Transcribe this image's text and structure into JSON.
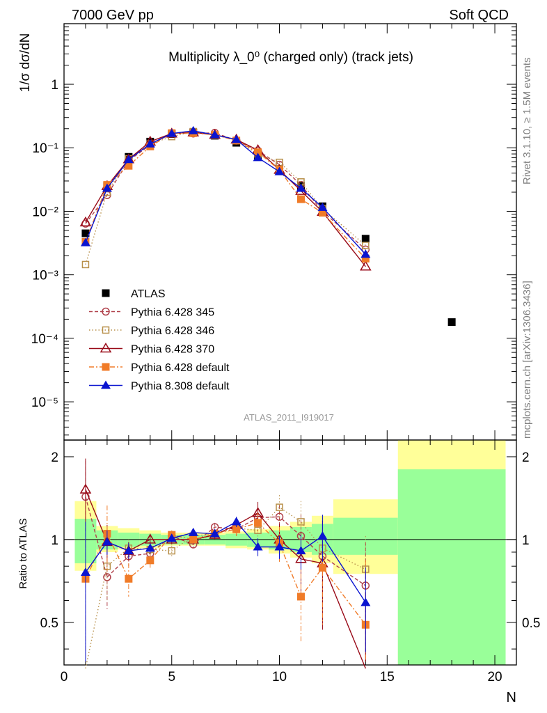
{
  "header": {
    "left": "7000 GeV pp",
    "right": "Soft QCD"
  },
  "side_labels": {
    "rivet": "Rivet 3.1.10, ≥ 1.5M events",
    "mcplots": "mcplots.cern.ch [arXiv:1306.3436]"
  },
  "colors": {
    "atlas": "#000000",
    "p345": "#b0404a",
    "p346": "#b8904a",
    "p370": "#990a18",
    "p6def": "#f07b28",
    "p8def": "#0a14d0",
    "band_inner": "#99ff99",
    "band_outer": "#ffff99"
  },
  "chart_data": {
    "type": "line",
    "title": "Multiplicity λ_0⁰ (charged only) (track jets)",
    "analysis_id": "ATLAS_2011_I919017",
    "xlabel": "N",
    "ylabel": "1/σ dσ/dN",
    "ratio_ylabel": "Ratio to ATLAS",
    "xlim": [
      0,
      21
    ],
    "ylim": [
      2.5e-06,
      9
    ],
    "yscale": "log",
    "ratio_ylim": [
      0.35,
      2.3
    ],
    "x_ticks": [
      "0",
      "5",
      "10",
      "15",
      "20"
    ],
    "y_ticks": [
      "10⁻⁵",
      "10⁻⁴",
      "10⁻³",
      "10⁻²",
      "10⁻¹",
      "1"
    ],
    "ratio_ticks": [
      "0.5",
      "1",
      "2"
    ],
    "legend_position": "center-left",
    "ref_band": [
      {
        "x0": 0.5,
        "x1": 1.5,
        "inner": [
          0.82,
          1.19
        ],
        "outer": [
          0.77,
          1.38
        ]
      },
      {
        "x0": 1.5,
        "x1": 2.5,
        "inner": [
          0.92,
          1.08
        ],
        "outer": [
          0.9,
          1.12
        ]
      },
      {
        "x0": 2.5,
        "x1": 3.5,
        "inner": [
          0.94,
          1.06
        ],
        "outer": [
          0.92,
          1.1
        ]
      },
      {
        "x0": 3.5,
        "x1": 4.5,
        "inner": [
          0.95,
          1.05
        ],
        "outer": [
          0.93,
          1.08
        ]
      },
      {
        "x0": 4.5,
        "x1": 5.5,
        "inner": [
          0.96,
          1.04
        ],
        "outer": [
          0.95,
          1.06
        ]
      },
      {
        "x0": 5.5,
        "x1": 6.5,
        "inner": [
          0.96,
          1.04
        ],
        "outer": [
          0.95,
          1.06
        ]
      },
      {
        "x0": 6.5,
        "x1": 7.5,
        "inner": [
          0.96,
          1.04
        ],
        "outer": [
          0.95,
          1.06
        ]
      },
      {
        "x0": 7.5,
        "x1": 8.5,
        "inner": [
          0.95,
          1.05
        ],
        "outer": [
          0.93,
          1.07
        ]
      },
      {
        "x0": 8.5,
        "x1": 9.5,
        "inner": [
          0.94,
          1.06
        ],
        "outer": [
          0.92,
          1.09
        ]
      },
      {
        "x0": 9.5,
        "x1": 10.5,
        "inner": [
          0.92,
          1.08
        ],
        "outer": [
          0.89,
          1.12
        ]
      },
      {
        "x0": 10.5,
        "x1": 11.5,
        "inner": [
          0.9,
          1.11
        ],
        "outer": [
          0.86,
          1.16
        ]
      },
      {
        "x0": 11.5,
        "x1": 12.5,
        "inner": [
          0.88,
          1.14
        ],
        "outer": [
          0.82,
          1.22
        ]
      },
      {
        "x0": 12.5,
        "x1": 15.5,
        "inner": [
          0.88,
          1.2
        ],
        "outer": [
          0.75,
          1.4
        ]
      },
      {
        "x0": 15.5,
        "x1": 20.5,
        "inner": [
          0.35,
          1.8
        ],
        "outer": [
          0.35,
          2.3
        ]
      }
    ],
    "series": [
      {
        "name": "ATLAS",
        "key": "atlas",
        "marker": "square",
        "dash": "",
        "x": [
          1,
          2,
          3,
          4,
          5,
          6,
          7,
          8,
          9,
          10,
          11,
          12,
          14,
          18
        ],
        "y": [
          0.0045,
          0.025,
          0.072,
          0.125,
          0.165,
          0.175,
          0.155,
          0.12,
          0.075,
          0.045,
          0.025,
          0.012,
          0.0037,
          0.00018
        ],
        "ratio": []
      },
      {
        "name": "Pythia 6.428 345",
        "key": "p345",
        "marker": "circle-open",
        "dash": "5,3",
        "x": [
          1,
          2,
          3,
          4,
          5,
          6,
          7,
          8,
          9,
          10,
          11,
          12,
          14
        ],
        "y": [
          0.0064,
          0.018,
          0.063,
          0.11,
          0.17,
          0.168,
          0.172,
          0.13,
          0.09,
          0.054,
          0.026,
          0.01,
          0.0025
        ],
        "ratio": [
          1.43,
          0.73,
          0.87,
          0.89,
          1.03,
          0.96,
          1.11,
          1.09,
          1.2,
          1.21,
          1.03,
          0.87,
          0.68
        ],
        "err": [
          0.5,
          0.17,
          0.07,
          0.05,
          0.04,
          0.03,
          0.04,
          0.06,
          0.1,
          0.12,
          0.2,
          0.28,
          0.3
        ]
      },
      {
        "name": "Pythia 6.428 346",
        "key": "p346",
        "marker": "square-open",
        "dash": "1.5,3",
        "x": [
          1,
          2,
          3,
          4,
          5,
          6,
          7,
          8,
          9,
          10,
          11,
          12,
          14
        ],
        "y": [
          0.00145,
          0.02,
          0.067,
          0.115,
          0.15,
          0.18,
          0.16,
          0.13,
          0.08,
          0.059,
          0.029,
          0.011,
          0.0029
        ],
        "ratio": [
          0.32,
          0.8,
          0.93,
          0.92,
          0.91,
          1.03,
          1.05,
          1.1,
          1.08,
          1.31,
          1.16,
          0.93,
          0.78
        ],
        "err": [
          0.2,
          0.2,
          0.07,
          0.05,
          0.04,
          0.03,
          0.04,
          0.06,
          0.1,
          0.14,
          0.22,
          0.3,
          0.25
        ]
      },
      {
        "name": "Pythia 6.428 370",
        "key": "p370",
        "marker": "triangle-open",
        "dash": "",
        "x": [
          1,
          2,
          3,
          4,
          5,
          6,
          7,
          8,
          9,
          10,
          11,
          12,
          14
        ],
        "y": [
          0.0067,
          0.025,
          0.066,
          0.125,
          0.168,
          0.175,
          0.16,
          0.135,
          0.092,
          0.045,
          0.021,
          0.0098,
          0.00135
        ],
        "ratio": [
          1.52,
          0.98,
          0.91,
          1.0,
          1.0,
          1.0,
          1.04,
          1.13,
          1.25,
          1.0,
          0.85,
          0.82,
          0.34
        ],
        "err": [
          0.45,
          0.15,
          0.07,
          0.05,
          0.04,
          0.03,
          0.04,
          0.07,
          0.12,
          0.14,
          0.22,
          0.35,
          0.3
        ]
      },
      {
        "name": "Pythia 6.428 default",
        "key": "p6def",
        "marker": "square",
        "dash": "7,3,2,3",
        "x": [
          1,
          2,
          3,
          4,
          5,
          6,
          7,
          8,
          9,
          10,
          11,
          12,
          14
        ],
        "y": [
          0.0033,
          0.026,
          0.052,
          0.105,
          0.17,
          0.17,
          0.16,
          0.13,
          0.085,
          0.045,
          0.0155,
          0.0095,
          0.0018
        ],
        "ratio": [
          0.72,
          1.05,
          0.72,
          0.84,
          1.04,
          1.0,
          1.05,
          1.09,
          1.15,
          0.97,
          0.62,
          0.79,
          0.49
        ],
        "err": [
          0.35,
          0.28,
          0.1,
          0.05,
          0.04,
          0.03,
          0.04,
          0.06,
          0.1,
          0.14,
          0.2,
          0.3,
          0.35
        ]
      },
      {
        "name": "Pythia 8.308 default",
        "key": "p8def",
        "marker": "triangle",
        "dash": "",
        "x": [
          1,
          2,
          3,
          4,
          5,
          6,
          7,
          8,
          9,
          10,
          11,
          12,
          14
        ],
        "y": [
          0.0032,
          0.023,
          0.065,
          0.115,
          0.168,
          0.185,
          0.16,
          0.135,
          0.07,
          0.042,
          0.023,
          0.0115,
          0.0021
        ],
        "ratio": [
          0.76,
          0.98,
          0.91,
          0.93,
          1.01,
          1.06,
          1.05,
          1.16,
          0.94,
          0.94,
          0.91,
          1.03,
          0.59
        ],
        "err": [
          0.4,
          0.1,
          0.06,
          0.04,
          0.03,
          0.03,
          0.04,
          0.05,
          0.07,
          0.09,
          0.13,
          0.2,
          0.2
        ]
      }
    ]
  }
}
